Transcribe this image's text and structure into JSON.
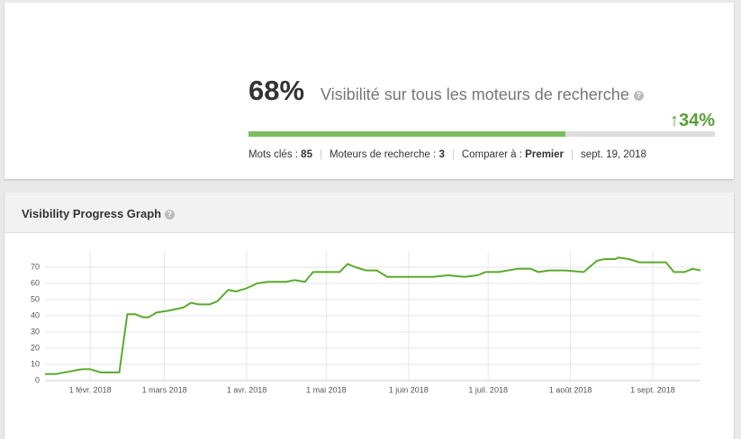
{
  "summary": {
    "visibility": {
      "value": 68,
      "label": "68%"
    },
    "description": "Visibilité sur tous les moteurs de recherche",
    "change": "34%",
    "stats": [
      {
        "label": "Mots clés :",
        "value": "85"
      },
      {
        "label": "Moteurs de recherche :",
        "value": "3"
      },
      {
        "label": "Comparer à :",
        "value": "Premier"
      }
    ],
    "date": "sept. 19, 2018"
  },
  "chart_data": {
    "type": "line",
    "title": "Visibility Progress Graph",
    "x": [
      "2018-01-15",
      "2018-01-19",
      "2018-01-29",
      "2018-02-01",
      "2018-02-05",
      "2018-02-12",
      "2018-02-15",
      "2018-02-18",
      "2018-02-21",
      "2018-02-23",
      "2018-02-26",
      "2018-03-02",
      "2018-03-08",
      "2018-03-11",
      "2018-03-14",
      "2018-03-18",
      "2018-03-21",
      "2018-03-25",
      "2018-03-28",
      "2018-04-01",
      "2018-04-05",
      "2018-04-09",
      "2018-04-16",
      "2018-04-19",
      "2018-04-23",
      "2018-04-26",
      "2018-04-29",
      "2018-05-06",
      "2018-05-09",
      "2018-05-12",
      "2018-05-16",
      "2018-05-20",
      "2018-05-24",
      "2018-06-03",
      "2018-06-10",
      "2018-06-16",
      "2018-06-22",
      "2018-06-27",
      "2018-06-30",
      "2018-07-05",
      "2018-07-12",
      "2018-07-17",
      "2018-07-20",
      "2018-07-24",
      "2018-07-30",
      "2018-08-06",
      "2018-08-11",
      "2018-08-14",
      "2018-08-18",
      "2018-08-19",
      "2018-08-23",
      "2018-08-27",
      "2018-09-06",
      "2018-09-09",
      "2018-09-13",
      "2018-09-16",
      "2018-09-19"
    ],
    "series": [
      {
        "color": "#5aab2e",
        "values": [
          4,
          4,
          7,
          7,
          5,
          5,
          41,
          41,
          39,
          39,
          42,
          43,
          45,
          48,
          47,
          47,
          49,
          56,
          55,
          57,
          60,
          61,
          61,
          62,
          61,
          67,
          67,
          67,
          72,
          70,
          68,
          68,
          64,
          64,
          64,
          65,
          64,
          65,
          67,
          67,
          69,
          69,
          67,
          68,
          68,
          67,
          74,
          75,
          75,
          76,
          75,
          73,
          73,
          67,
          67,
          69,
          68
        ]
      }
    ],
    "xlim": [
      "2018-01-15",
      "2018-09-19"
    ],
    "xticks": [
      {
        "value": "2018-02-01",
        "label": "1 févr. 2018"
      },
      {
        "value": "2018-03-01",
        "label": "1 mars 2018"
      },
      {
        "value": "2018-04-01",
        "label": "1 avr. 2018"
      },
      {
        "value": "2018-05-01",
        "label": "1 mai 2018"
      },
      {
        "value": "2018-06-01",
        "label": "1 juin 2018"
      },
      {
        "value": "2018-07-01",
        "label": "1 juil. 2018"
      },
      {
        "value": "2018-08-01",
        "label": "1 août 2018"
      },
      {
        "value": "2018-09-01",
        "label": "1 sept. 2018"
      }
    ],
    "ylim": [
      0,
      80
    ],
    "yticks": [
      0,
      10,
      20,
      30,
      40,
      50,
      60,
      70
    ],
    "grid": true
  }
}
